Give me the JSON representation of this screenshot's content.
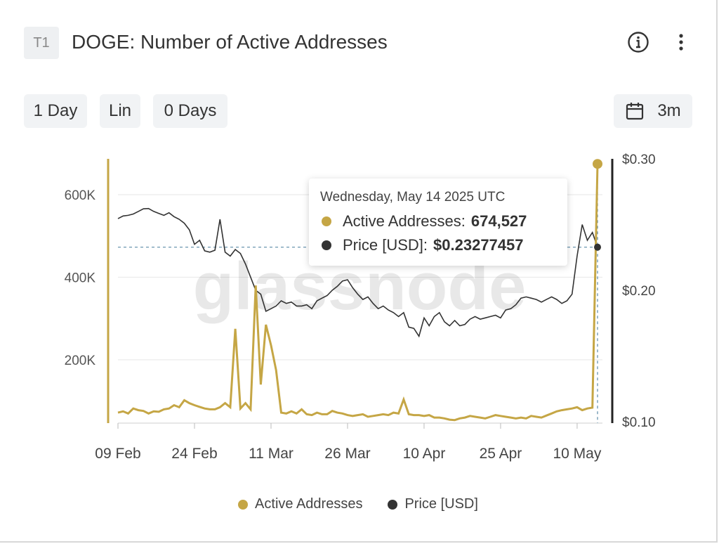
{
  "header": {
    "badge": "T1",
    "title": "DOGE: Number of Active Addresses",
    "info_icon": "info-circle-icon",
    "menu_icon": "more-vertical-icon"
  },
  "controls": {
    "resolution": "1 Day",
    "scale": "Lin",
    "moving_average": "0 Days",
    "range": "3m",
    "range_icon": "calendar-icon"
  },
  "watermark": "glassnode",
  "tooltip": {
    "date": "Wednesday, May 14 2025 UTC",
    "rows": [
      {
        "label": "Active Addresses:",
        "value": "674,527"
      },
      {
        "label": "Price [USD]:",
        "value": "$0.23277457"
      }
    ]
  },
  "legend": [
    "Active Addresses",
    "Price [USD]"
  ],
  "colors": {
    "active": "#c5a645",
    "price": "#333333",
    "grid": "#ebebeb",
    "dashed": "#5a8aa8"
  },
  "chart_data": {
    "type": "line",
    "x_ticks": [
      "09 Feb",
      "24 Feb",
      "11 Mar",
      "26 Mar",
      "10 Apr",
      "25 Apr",
      "10 May"
    ],
    "y_left_ticks": [
      "200K",
      "400K",
      "600K"
    ],
    "y_right_ticks": [
      "$0.10",
      "$0.20",
      "$0.30"
    ],
    "x_start": "2025-02-09",
    "x_end": "2025-05-14",
    "ylim_left": [
      50000,
      680000
    ],
    "ylim_right": [
      0.1,
      0.3
    ],
    "series": [
      {
        "name": "Active Addresses",
        "values": [
          72000,
          75000,
          70000,
          82000,
          78000,
          76000,
          70000,
          75000,
          74000,
          80000,
          82000,
          90000,
          85000,
          102000,
          95000,
          90000,
          86000,
          82000,
          80000,
          80000,
          85000,
          95000,
          85000,
          275000,
          82000,
          95000,
          80000,
          380000,
          140000,
          285000,
          235000,
          175000,
          72000,
          70000,
          75000,
          70000,
          80000,
          68000,
          66000,
          72000,
          68000,
          68000,
          76000,
          72000,
          70000,
          66000,
          64000,
          66000,
          68000,
          62000,
          64000,
          66000,
          68000,
          66000,
          72000,
          70000,
          104000,
          68000,
          66000,
          66000,
          64000,
          66000,
          60000,
          60000,
          58000,
          55000,
          54000,
          58000,
          60000,
          64000,
          62000,
          60000,
          58000,
          62000,
          66000,
          64000,
          62000,
          60000,
          58000,
          60000,
          58000,
          64000,
          62000,
          60000,
          65000,
          70000,
          75000,
          78000,
          80000,
          82000,
          85000,
          78000,
          82000,
          84000,
          674527
        ],
        "color": "#c5a645"
      },
      {
        "name": "Price [USD]",
        "values": [
          0.2545,
          0.2565,
          0.257,
          0.258,
          0.26,
          0.262,
          0.2622,
          0.26,
          0.2585,
          0.257,
          0.259,
          0.256,
          0.254,
          0.251,
          0.246,
          0.235,
          0.238,
          0.23,
          0.229,
          0.2305,
          0.254,
          0.229,
          0.226,
          0.231,
          0.228,
          0.22,
          0.21,
          0.2,
          0.197,
          0.184,
          0.186,
          0.188,
          0.192,
          0.19,
          0.191,
          0.188,
          0.188,
          0.189,
          0.186,
          0.192,
          0.194,
          0.196,
          0.2,
          0.203,
          0.207,
          0.208,
          0.202,
          0.197,
          0.193,
          0.195,
          0.19,
          0.186,
          0.188,
          0.185,
          0.183,
          0.18,
          0.183,
          0.172,
          0.171,
          0.165,
          0.179,
          0.173,
          0.18,
          0.183,
          0.176,
          0.173,
          0.177,
          0.173,
          0.174,
          0.178,
          0.18,
          0.178,
          0.179,
          0.18,
          0.181,
          0.179,
          0.185,
          0.186,
          0.189,
          0.194,
          0.195,
          0.194,
          0.193,
          0.191,
          0.193,
          0.195,
          0.193,
          0.19,
          0.192,
          0.197,
          0.226,
          0.25,
          0.238,
          0.244,
          0.2328
        ],
        "color": "#333333"
      }
    ]
  }
}
